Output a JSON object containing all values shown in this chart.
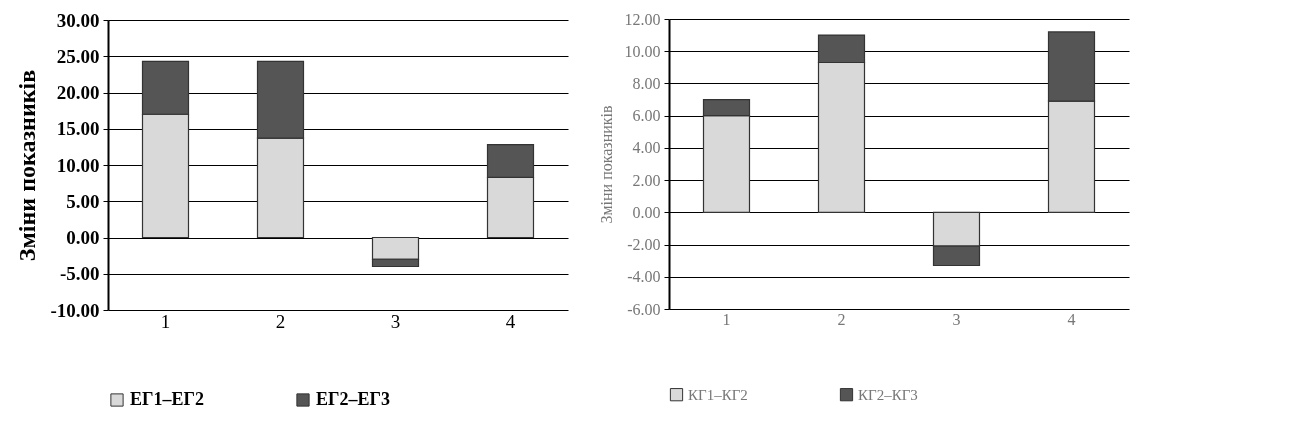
{
  "chart_data": [
    {
      "type": "bar",
      "stacked": true,
      "ylabel": "Зміни показників",
      "categories": [
        "1",
        "2",
        "3",
        "4"
      ],
      "series": [
        {
          "name": "ЕГ1–ЕГ2",
          "color": "#d9d9d9",
          "values": [
            17.0,
            13.7,
            -3.0,
            8.3
          ]
        },
        {
          "name": "ЕГ2–ЕГ3",
          "color": "#555555",
          "values": [
            7.3,
            10.6,
            -1.0,
            4.5
          ]
        }
      ],
      "ylim": [
        -10,
        30
      ],
      "yticks": [
        {
          "value": -10,
          "label": "-10.00"
        },
        {
          "value": -5,
          "label": "-5.00"
        },
        {
          "value": 0,
          "label": "0.00"
        },
        {
          "value": 5,
          "label": "5.00"
        },
        {
          "value": 10,
          "label": "10.00"
        },
        {
          "value": 15,
          "label": "15.00"
        },
        {
          "value": 20,
          "label": "20.00"
        },
        {
          "value": 25,
          "label": "25.00"
        },
        {
          "value": 30,
          "label": "30.00"
        }
      ],
      "grid": "y",
      "legend": "bottom"
    },
    {
      "type": "bar",
      "stacked": true,
      "ylabel": "Зміни показників",
      "categories": [
        "1",
        "2",
        "3",
        "4"
      ],
      "series": [
        {
          "name": "КГ1–КГ2",
          "color": "#d9d9d9",
          "values": [
            6.0,
            9.3,
            -2.1,
            6.9
          ]
        },
        {
          "name": "КГ2–КГ3",
          "color": "#555555",
          "values": [
            1.0,
            1.7,
            -1.2,
            4.3
          ]
        }
      ],
      "ylim": [
        -6,
        12
      ],
      "yticks": [
        {
          "value": -6,
          "label": "-6.00"
        },
        {
          "value": -4,
          "label": "-4.00"
        },
        {
          "value": -2,
          "label": "-2.00"
        },
        {
          "value": 0,
          "label": "0.00"
        },
        {
          "value": 2,
          "label": "2.00"
        },
        {
          "value": 4,
          "label": "4.00"
        },
        {
          "value": 6,
          "label": "6.00"
        },
        {
          "value": 8,
          "label": "8.00"
        },
        {
          "value": 10,
          "label": "10.00"
        },
        {
          "value": 12,
          "label": "12.00"
        }
      ],
      "grid": "y",
      "legend": "bottom"
    }
  ]
}
